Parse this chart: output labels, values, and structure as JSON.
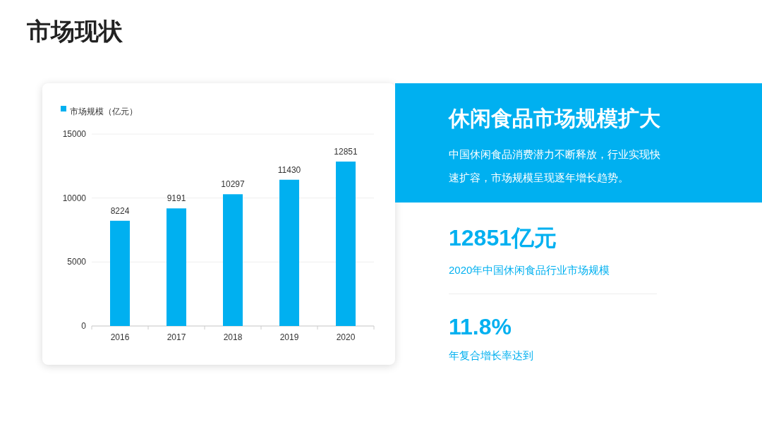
{
  "chart_data": [
    {
      "type": "bar",
      "title": "市场现状",
      "categories": [
        "2016",
        "2017",
        "2018",
        "2019",
        "2020"
      ],
      "series": [
        {
          "name": "市场规模（亿元）",
          "color": "#00b0f0",
          "values": [
            8224,
            9191,
            10297,
            11430,
            12851
          ]
        }
      ],
      "ylim": [
        0,
        15000
      ],
      "yticks": [
        0,
        5000,
        10000,
        15000
      ],
      "grid": "y",
      "legend": "top left",
      "data_labels": true
    },
    {
      "type": "other",
      "title": "休闲食品市场规模扩大",
      "subtitle": "中国休闲食品消费潜力不断释放，行业实现快速扩容，市场规模呈现逐年增长趋势。",
      "annotations": [
        "12851亿元",
        "2020年中国休闲食品行业市场规模",
        "11.8%",
        "年复合增长率达到"
      ]
    }
  ]
}
